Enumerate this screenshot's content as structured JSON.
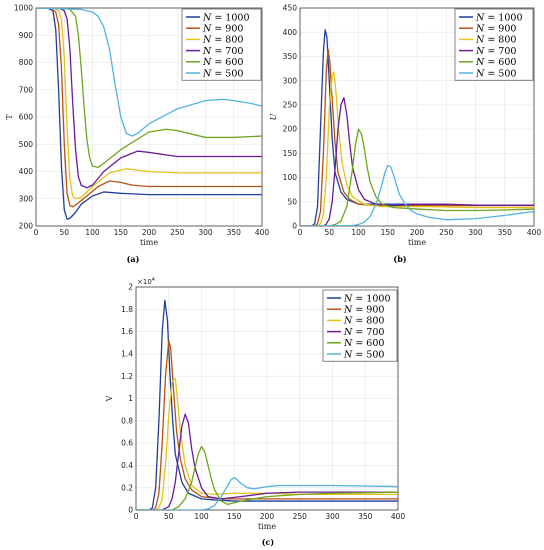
{
  "chart_data": [
    {
      "type": "line",
      "panel": "(a)",
      "ylabel": "T",
      "xlabel": "time",
      "xlim": [
        0,
        400
      ],
      "ylim": [
        200,
        1000
      ],
      "xticks": [
        0,
        50,
        100,
        150,
        200,
        250,
        300,
        350,
        400
      ],
      "yticks": [
        200,
        300,
        400,
        500,
        600,
        700,
        800,
        900,
        1000
      ],
      "grid": true,
      "legend_position": "top-right",
      "series": [
        {
          "name": "N = 1000",
          "color": "#1f3f9f",
          "x": [
            0,
            20,
            30,
            35,
            40,
            45,
            50,
            55,
            60,
            70,
            80,
            100,
            120,
            150,
            200,
            250,
            300,
            400
          ],
          "y": [
            1000,
            1000,
            990,
            920,
            700,
            420,
            260,
            225,
            228,
            250,
            280,
            310,
            325,
            320,
            315,
            315,
            315,
            315
          ]
        },
        {
          "name": "N = 900",
          "color": "#b8520f",
          "x": [
            0,
            25,
            35,
            40,
            45,
            50,
            55,
            60,
            65,
            75,
            90,
            110,
            130,
            150,
            170,
            200,
            250,
            300,
            400
          ],
          "y": [
            1000,
            1000,
            985,
            940,
            780,
            500,
            320,
            275,
            270,
            285,
            310,
            345,
            365,
            360,
            350,
            345,
            345,
            345,
            345
          ]
        },
        {
          "name": "N = 800",
          "color": "#e6c21a",
          "x": [
            0,
            30,
            40,
            45,
            50,
            55,
            60,
            65,
            70,
            80,
            100,
            130,
            160,
            200,
            250,
            300,
            400
          ],
          "y": [
            1000,
            1000,
            990,
            960,
            820,
            560,
            370,
            310,
            300,
            305,
            345,
            395,
            410,
            400,
            395,
            395,
            395
          ]
        },
        {
          "name": "N = 700",
          "color": "#6a1b9a",
          "x": [
            0,
            40,
            50,
            55,
            60,
            65,
            70,
            75,
            80,
            90,
            100,
            120,
            150,
            180,
            200,
            250,
            300,
            400
          ],
          "y": [
            1000,
            1000,
            990,
            960,
            850,
            650,
            480,
            380,
            350,
            340,
            350,
            400,
            450,
            475,
            470,
            455,
            455,
            455
          ]
        },
        {
          "name": "N = 600",
          "color": "#6ea51e",
          "x": [
            0,
            50,
            60,
            70,
            75,
            80,
            85,
            90,
            95,
            100,
            110,
            120,
            150,
            200,
            230,
            250,
            300,
            350,
            400
          ],
          "y": [
            1000,
            1000,
            995,
            970,
            900,
            780,
            640,
            520,
            450,
            420,
            415,
            430,
            480,
            545,
            555,
            550,
            525,
            525,
            530
          ]
        },
        {
          "name": "N = 500",
          "color": "#53b3e3",
          "x": [
            0,
            80,
            100,
            110,
            120,
            130,
            140,
            150,
            160,
            170,
            180,
            200,
            250,
            300,
            330,
            350,
            380,
            400
          ],
          "y": [
            1000,
            995,
            985,
            970,
            930,
            850,
            720,
            600,
            540,
            530,
            540,
            575,
            630,
            660,
            665,
            660,
            650,
            640
          ]
        }
      ]
    },
    {
      "type": "line",
      "panel": "(b)",
      "ylabel": "U",
      "xlabel": "time",
      "xlim": [
        0,
        400
      ],
      "ylim": [
        0,
        450
      ],
      "xticks": [
        0,
        50,
        100,
        150,
        200,
        250,
        300,
        350,
        400
      ],
      "yticks": [
        0,
        50,
        100,
        150,
        200,
        250,
        300,
        350,
        400,
        450
      ],
      "grid": true,
      "legend_position": "top-right",
      "series": [
        {
          "name": "N = 1000",
          "color": "#1f3f9f",
          "x": [
            0,
            20,
            25,
            30,
            35,
            40,
            43,
            46,
            50,
            55,
            60,
            70,
            80,
            100,
            120,
            150,
            200,
            250,
            300,
            400
          ],
          "y": [
            0,
            0,
            5,
            40,
            200,
            360,
            405,
            390,
            300,
            180,
            110,
            70,
            55,
            45,
            45,
            45,
            45,
            44,
            43,
            43
          ]
        },
        {
          "name": "N = 900",
          "color": "#b8520f",
          "x": [
            0,
            25,
            30,
            35,
            40,
            45,
            48,
            51,
            55,
            60,
            65,
            75,
            85,
            100,
            130,
            160,
            200,
            250,
            300,
            400
          ],
          "y": [
            0,
            0,
            5,
            30,
            150,
            320,
            365,
            340,
            260,
            170,
            110,
            70,
            55,
            45,
            42,
            42,
            42,
            42,
            42,
            42
          ]
        },
        {
          "name": "N = 800",
          "color": "#e6c21a",
          "x": [
            0,
            30,
            35,
            40,
            45,
            50,
            55,
            58,
            62,
            66,
            72,
            80,
            90,
            110,
            140,
            180,
            220,
            300,
            400
          ],
          "y": [
            0,
            0,
            5,
            25,
            100,
            240,
            310,
            318,
            270,
            200,
            130,
            85,
            60,
            45,
            40,
            40,
            40,
            38,
            38
          ]
        },
        {
          "name": "N = 700",
          "color": "#6a1b9a",
          "x": [
            0,
            40,
            45,
            50,
            55,
            60,
            65,
            70,
            75,
            80,
            85,
            90,
            100,
            110,
            130,
            160,
            200,
            250,
            300,
            400
          ],
          "y": [
            0,
            0,
            4,
            15,
            50,
            120,
            200,
            250,
            265,
            230,
            170,
            120,
            75,
            55,
            45,
            42,
            45,
            45,
            43,
            43
          ]
        },
        {
          "name": "N = 600",
          "color": "#6ea51e",
          "x": [
            0,
            50,
            60,
            70,
            80,
            90,
            95,
            100,
            105,
            110,
            115,
            120,
            130,
            140,
            160,
            200,
            250,
            300,
            350,
            400
          ],
          "y": [
            0,
            0,
            3,
            10,
            40,
            120,
            170,
            200,
            190,
            160,
            120,
            90,
            60,
            45,
            38,
            35,
            32,
            32,
            33,
            35
          ]
        },
        {
          "name": "N = 500",
          "color": "#53b3e3",
          "x": [
            0,
            90,
            100,
            110,
            120,
            130,
            140,
            145,
            150,
            155,
            160,
            165,
            170,
            180,
            190,
            200,
            220,
            250,
            300,
            350,
            400
          ],
          "y": [
            0,
            1,
            3,
            8,
            20,
            45,
            85,
            110,
            125,
            122,
            105,
            85,
            65,
            45,
            32,
            25,
            18,
            13,
            15,
            22,
            30
          ]
        }
      ]
    },
    {
      "type": "line",
      "panel": "(c)",
      "ylabel": "V",
      "xlabel": "time",
      "xlim": [
        0,
        400
      ],
      "ylim": [
        0,
        2
      ],
      "y_exponent": "×10^4",
      "xticks": [
        0,
        50,
        100,
        150,
        200,
        250,
        300,
        350,
        400
      ],
      "yticks": [
        0,
        0.2,
        0.4,
        0.6,
        0.8,
        1,
        1.2,
        1.4,
        1.6,
        1.8,
        2
      ],
      "grid": true,
      "legend_position": "top-right",
      "series": [
        {
          "name": "N = 1000",
          "color": "#1f3f9f",
          "x": [
            0,
            20,
            25,
            30,
            35,
            40,
            44,
            48,
            52,
            56,
            60,
            70,
            80,
            100,
            120,
            150,
            200,
            250,
            300,
            400
          ],
          "y": [
            0,
            0,
            0.02,
            0.2,
            0.8,
            1.6,
            1.88,
            1.7,
            1.2,
            0.8,
            0.5,
            0.25,
            0.15,
            0.1,
            0.09,
            0.08,
            0.08,
            0.08,
            0.08,
            0.08
          ]
        },
        {
          "name": "N = 900",
          "color": "#b8520f",
          "x": [
            0,
            25,
            30,
            35,
            40,
            45,
            50,
            53,
            57,
            62,
            68,
            75,
            85,
            100,
            130,
            160,
            200,
            250,
            300,
            400
          ],
          "y": [
            0,
            0,
            0.02,
            0.15,
            0.6,
            1.2,
            1.52,
            1.45,
            1.1,
            0.7,
            0.45,
            0.28,
            0.18,
            0.12,
            0.1,
            0.1,
            0.1,
            0.1,
            0.1,
            0.1
          ]
        },
        {
          "name": "N = 800",
          "color": "#e6c21a",
          "x": [
            0,
            30,
            35,
            40,
            45,
            50,
            55,
            60,
            64,
            68,
            75,
            85,
            100,
            120,
            150,
            200,
            250,
            300,
            400
          ],
          "y": [
            0,
            0,
            0.02,
            0.1,
            0.4,
            0.85,
            1.15,
            1.18,
            0.95,
            0.7,
            0.4,
            0.22,
            0.15,
            0.14,
            0.15,
            0.15,
            0.14,
            0.14,
            0.14
          ]
        },
        {
          "name": "N = 700",
          "color": "#6a1b9a",
          "x": [
            0,
            40,
            50,
            55,
            60,
            65,
            70,
            75,
            80,
            85,
            90,
            100,
            110,
            130,
            160,
            200,
            250,
            300,
            400
          ],
          "y": [
            0,
            0,
            0.03,
            0.1,
            0.25,
            0.5,
            0.75,
            0.86,
            0.78,
            0.55,
            0.38,
            0.2,
            0.12,
            0.1,
            0.12,
            0.15,
            0.16,
            0.16,
            0.16
          ]
        },
        {
          "name": "N = 600",
          "color": "#6ea51e",
          "x": [
            0,
            55,
            65,
            75,
            85,
            90,
            95,
            100,
            105,
            110,
            115,
            120,
            130,
            140,
            160,
            200,
            250,
            300,
            400
          ],
          "y": [
            0,
            0,
            0.03,
            0.1,
            0.25,
            0.38,
            0.5,
            0.57,
            0.52,
            0.4,
            0.28,
            0.18,
            0.08,
            0.05,
            0.08,
            0.12,
            0.14,
            0.15,
            0.16
          ]
        },
        {
          "name": "N = 500",
          "color": "#53b3e3",
          "x": [
            0,
            100,
            110,
            120,
            130,
            140,
            145,
            150,
            155,
            160,
            170,
            180,
            190,
            200,
            220,
            250,
            300,
            400
          ],
          "y": [
            0,
            0,
            0.01,
            0.04,
            0.12,
            0.22,
            0.27,
            0.29,
            0.27,
            0.24,
            0.2,
            0.19,
            0.2,
            0.21,
            0.22,
            0.22,
            0.22,
            0.21
          ]
        }
      ]
    }
  ]
}
